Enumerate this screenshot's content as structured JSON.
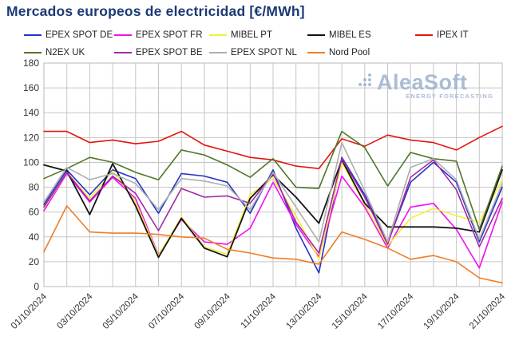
{
  "title": "Mercados europeos de electricidad [€/MWh]",
  "watermark": {
    "brand": "AleaSoft",
    "tagline": "ENERGY FORECASTING"
  },
  "chart_data": {
    "type": "line",
    "title": "Mercados europeos de electricidad [€/MWh]",
    "xlabel": "",
    "ylabel": "",
    "ylim": [
      0,
      180
    ],
    "ytick_step": 20,
    "yticks": [
      0,
      20,
      40,
      60,
      80,
      100,
      120,
      140,
      160,
      180
    ],
    "grid": true,
    "legend_position": "top",
    "categories": [
      "01/10/2024",
      "02/10/2024",
      "03/10/2024",
      "04/10/2024",
      "05/10/2024",
      "06/10/2024",
      "07/10/2024",
      "08/10/2024",
      "09/10/2024",
      "10/10/2024",
      "11/10/2024",
      "12/10/2024",
      "13/10/2024",
      "14/10/2024",
      "15/10/2024",
      "16/10/2024",
      "17/10/2024",
      "18/10/2024",
      "19/10/2024",
      "20/10/2024",
      "21/10/2024"
    ],
    "x_tick_labels_shown": [
      "01/10/2024",
      "03/10/2024",
      "05/10/2024",
      "07/10/2024",
      "09/10/2024",
      "11/10/2024",
      "13/10/2024",
      "15/10/2024",
      "17/10/2024",
      "19/10/2024",
      "21/10/2024"
    ],
    "series": [
      {
        "name": "EPEX SPOT DE",
        "color": "#2433c8",
        "values": [
          66,
          94,
          74,
          94,
          87,
          59,
          91,
          89,
          84,
          59,
          94,
          47,
          11,
          104,
          74,
          35,
          84,
          100,
          84,
          36,
          80
        ]
      },
      {
        "name": "EPEX SPOT FR",
        "color": "#f50cf5",
        "values": [
          61,
          91,
          68,
          88,
          71,
          25.5,
          54,
          36,
          34,
          47,
          84,
          50,
          24,
          89,
          64,
          31,
          64,
          67,
          46,
          15,
          68
        ]
      },
      {
        "name": "MIBEL PT",
        "color": "#f2ee3e",
        "values": [
          63,
          92,
          71,
          93,
          68,
          25,
          56,
          32,
          26,
          74,
          87,
          57,
          22,
          100,
          66,
          33,
          55,
          63,
          57,
          52,
          86
        ]
      },
      {
        "name": "MIBEL ES",
        "color": "#131313",
        "values": [
          98,
          93,
          58,
          99,
          65,
          23.5,
          55,
          31,
          24,
          71,
          90,
          72,
          51,
          102,
          67,
          48,
          48,
          48,
          47,
          44,
          94
        ]
      },
      {
        "name": "IPEX IT",
        "color": "#e4150d",
        "values": [
          125,
          125,
          116,
          118,
          115,
          117,
          125,
          114,
          109,
          104,
          102,
          97,
          95,
          119,
          113,
          122,
          118,
          116,
          110,
          120,
          129
        ]
      },
      {
        "name": "N2EX UK",
        "color": "#4e7627",
        "values": [
          87,
          95,
          104,
          100,
          92,
          86,
          110,
          106,
          98,
          88,
          103,
          80,
          79,
          125,
          112,
          81,
          108,
          103,
          101,
          46,
          97
        ]
      },
      {
        "name": "EPEX SPOT BE",
        "color": "#a32aa3",
        "values": [
          64,
          92,
          69,
          89,
          75,
          45,
          79,
          72,
          73,
          67,
          91,
          52,
          27,
          103,
          72,
          34,
          88,
          102,
          78,
          32,
          71
        ]
      },
      {
        "name": "EPEX SPOT NL",
        "color": "#aeaeae",
        "values": [
          68,
          96,
          86,
          91,
          83,
          62,
          87,
          85,
          81,
          62,
          92,
          64,
          36,
          116,
          77,
          36,
          96,
          103,
          86,
          38,
          83
        ]
      },
      {
        "name": "Nord Pool",
        "color": "#ee7d26",
        "values": [
          28,
          65,
          44,
          43,
          43,
          42,
          40,
          39,
          30,
          27,
          23,
          22,
          18,
          44,
          38,
          31,
          22,
          25,
          20,
          7,
          3
        ]
      }
    ]
  },
  "layout_colors": {
    "title": "#1b3a74",
    "grid": "#c6c6c6",
    "tick_text": "#333333",
    "watermark": "#9db1cf"
  }
}
